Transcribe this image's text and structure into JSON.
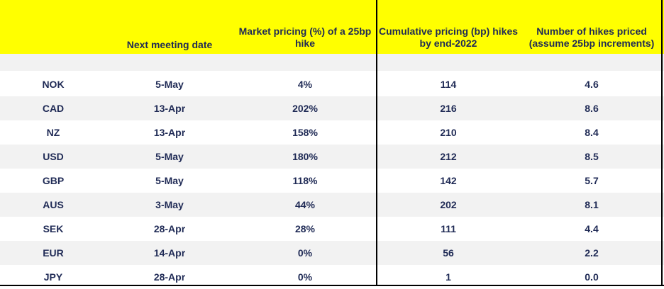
{
  "headers": {
    "currency": "",
    "next_meeting": "Next meeting date",
    "market_pricing": "Market pricing (%) of a 25bp hike",
    "cumulative": "Cumulative pricing (bp) hikes by end-2022",
    "num_hikes": "Number of hikes priced (assume 25bp increments)"
  },
  "rows": [
    {
      "currency": "NOK",
      "next_meeting": "5-May",
      "market_pricing": "4%",
      "cumulative": "114",
      "num_hikes": "4.6"
    },
    {
      "currency": "CAD",
      "next_meeting": "13-Apr",
      "market_pricing": "202%",
      "cumulative": "216",
      "num_hikes": "8.6"
    },
    {
      "currency": "NZ",
      "next_meeting": "13-Apr",
      "market_pricing": "158%",
      "cumulative": "210",
      "num_hikes": "8.4"
    },
    {
      "currency": "USD",
      "next_meeting": "5-May",
      "market_pricing": "180%",
      "cumulative": "212",
      "num_hikes": "8.5"
    },
    {
      "currency": "GBP",
      "next_meeting": "5-May",
      "market_pricing": "118%",
      "cumulative": "142",
      "num_hikes": "5.7"
    },
    {
      "currency": "AUS",
      "next_meeting": "3-May",
      "market_pricing": "44%",
      "cumulative": "202",
      "num_hikes": "8.1"
    },
    {
      "currency": "SEK",
      "next_meeting": "28-Apr",
      "market_pricing": "28%",
      "cumulative": "111",
      "num_hikes": "4.4"
    },
    {
      "currency": "EUR",
      "next_meeting": "14-Apr",
      "market_pricing": "0%",
      "cumulative": "56",
      "num_hikes": "2.2"
    },
    {
      "currency": "JPY",
      "next_meeting": "28-Apr",
      "market_pricing": "0%",
      "cumulative": "1",
      "num_hikes": "0.0"
    }
  ],
  "colors": {
    "header_bg": "#ffff00",
    "shade_bg": "#f2f2f2",
    "text": "#1f2a55"
  }
}
